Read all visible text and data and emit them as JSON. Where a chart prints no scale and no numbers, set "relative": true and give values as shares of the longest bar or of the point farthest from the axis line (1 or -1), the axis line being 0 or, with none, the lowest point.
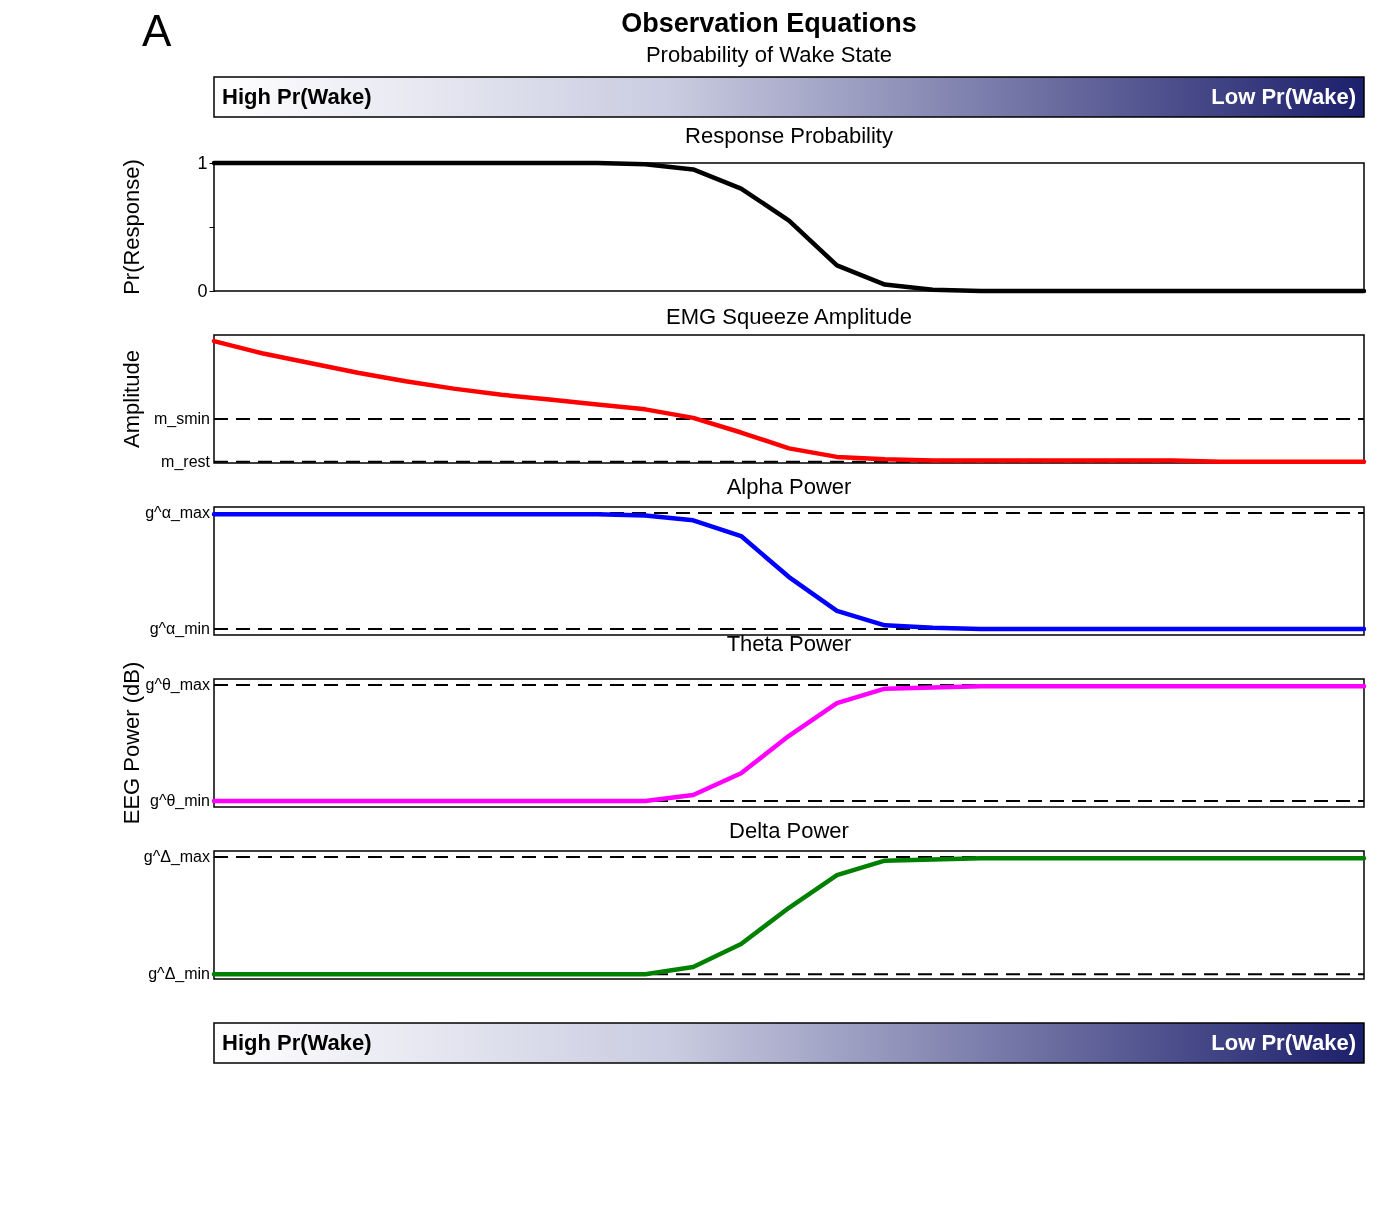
{
  "chart_data": [
    {
      "type": "line",
      "title": "Response Probability",
      "ylabel": "Pr(Response)",
      "annotations": [
        "A",
        "Observation Equations",
        "Probability of Wake State",
        "High Pr(Wake)",
        "Low Pr(Wake)"
      ],
      "categories": [
        null,
        null,
        null,
        null,
        null,
        null,
        null,
        null,
        null,
        null,
        null,
        null,
        null,
        null,
        null,
        null,
        null,
        null,
        null,
        null,
        null,
        null,
        null,
        null,
        null
      ],
      "series": [
        {
          "color": "#000000",
          "values": [
            1,
            1,
            1,
            1,
            1,
            1,
            1,
            1,
            1,
            0.99,
            0.95,
            0.8,
            0.55,
            0.2,
            0.05,
            0.01,
            0,
            0,
            0,
            0,
            0,
            0,
            0,
            0,
            0
          ]
        }
      ],
      "ylim": [
        0,
        1
      ],
      "yticks": [
        0,
        {
          "value": 0.5,
          "label": null
        },
        1
      ]
    },
    {
      "type": "line",
      "title": "EMG Squeeze Amplitude",
      "ylabel": "Amplitude",
      "relative": true,
      "categories": [
        null,
        null,
        null,
        null,
        null,
        null,
        null,
        null,
        null,
        null,
        null,
        null,
        null,
        null,
        null,
        null,
        null,
        null,
        null,
        null,
        null,
        null,
        null,
        null,
        null
      ],
      "series": [
        {
          "color": "#ff0000",
          "values": [
            1,
            0.9,
            0.82,
            0.74,
            0.67,
            0.61,
            0.56,
            0.52,
            0.48,
            0.44,
            0.37,
            0.25,
            0.12,
            0.05,
            0.03,
            0.02,
            0.02,
            0.02,
            0.02,
            0.02,
            0.02,
            0.01,
            0.01,
            0.01,
            0.01
          ]
        }
      ],
      "ref_lines": [
        {
          "axis": "y",
          "value": 0.36,
          "label": "m_smin",
          "color": "#000000",
          "line_style": "dashed"
        },
        {
          "axis": "y",
          "value": 0.01,
          "label": "m_rest",
          "color": "#000000",
          "line_style": "dashed"
        }
      ]
    },
    {
      "type": "line",
      "title": "Alpha Power",
      "relative": true,
      "categories": [
        null,
        null,
        null,
        null,
        null,
        null,
        null,
        null,
        null,
        null,
        null,
        null,
        null,
        null,
        null,
        null,
        null,
        null,
        null,
        null,
        null,
        null,
        null,
        null,
        null
      ],
      "series": [
        {
          "color": "#0000ff",
          "values": [
            1,
            1,
            1,
            1,
            1,
            1,
            1,
            1,
            1,
            0.99,
            0.95,
            0.82,
            0.48,
            0.2,
            0.08,
            0.06,
            0.05,
            0.05,
            0.05,
            0.05,
            0.05,
            0.05,
            0.05,
            0.05,
            0.05
          ]
        }
      ],
      "ref_lines": [
        {
          "axis": "y",
          "value": 1.01,
          "label": "g^α_max",
          "color": "#000000",
          "line_style": "dashed"
        },
        {
          "axis": "y",
          "value": 0.05,
          "label": "g^α_min",
          "color": "#000000",
          "line_style": "dashed"
        }
      ]
    },
    {
      "type": "line",
      "title": "Theta Power",
      "ylabel": "EEG Power (dB)",
      "relative": true,
      "categories": [
        null,
        null,
        null,
        null,
        null,
        null,
        null,
        null,
        null,
        null,
        null,
        null,
        null,
        null,
        null,
        null,
        null,
        null,
        null,
        null,
        null,
        null,
        null,
        null,
        null
      ],
      "series": [
        {
          "color": "#ff00ff",
          "values": [
            0.05,
            0.05,
            0.05,
            0.05,
            0.05,
            0.05,
            0.05,
            0.05,
            0.05,
            0.05,
            0.1,
            0.28,
            0.59,
            0.86,
            0.98,
            0.99,
            1,
            1,
            1,
            1,
            1,
            1,
            1,
            1,
            1
          ]
        }
      ],
      "ref_lines": [
        {
          "axis": "y",
          "value": 1.01,
          "label": "g^θ_max",
          "color": "#000000",
          "line_style": "dashed"
        },
        {
          "axis": "y",
          "value": 0.05,
          "label": "g^θ_min",
          "color": "#000000",
          "line_style": "dashed"
        }
      ]
    },
    {
      "type": "line",
      "title": "Delta Power",
      "relative": true,
      "annotations": [
        "High Pr(Wake)",
        "Low Pr(Wake)"
      ],
      "categories": [
        null,
        null,
        null,
        null,
        null,
        null,
        null,
        null,
        null,
        null,
        null,
        null,
        null,
        null,
        null,
        null,
        null,
        null,
        null,
        null,
        null,
        null,
        null,
        null,
        null
      ],
      "series": [
        {
          "color": "#008000",
          "values": [
            0.04,
            0.04,
            0.04,
            0.04,
            0.04,
            0.04,
            0.04,
            0.04,
            0.04,
            0.04,
            0.1,
            0.29,
            0.59,
            0.86,
            0.98,
            0.99,
            1,
            1,
            1,
            1,
            1,
            1,
            1,
            1,
            1
          ]
        }
      ],
      "ref_lines": [
        {
          "axis": "y",
          "value": 1.01,
          "label": "g^Δ_max",
          "color": "#000000",
          "line_style": "dashed"
        },
        {
          "axis": "y",
          "value": 0.04,
          "label": "g^Δ_min",
          "color": "#000000",
          "line_style": "dashed"
        }
      ]
    }
  ]
}
